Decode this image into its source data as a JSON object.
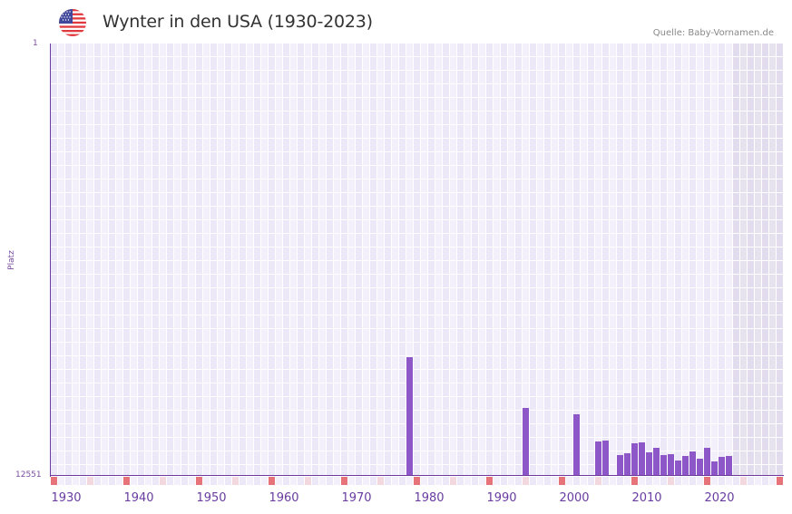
{
  "header": {
    "title": "Wynter in den USA (1930-2023)",
    "source": "Quelle: Baby-Vornamen.de",
    "flag_icon": "us-flag-icon"
  },
  "axes": {
    "y_top_label": "1",
    "y_bottom_label": "12551",
    "y_title": "Platz",
    "x_labels": [
      "1930",
      "1940",
      "1950",
      "1960",
      "1970",
      "1980",
      "1990",
      "2000",
      "2010",
      "2020"
    ]
  },
  "colors": {
    "bar": "#8e57c8",
    "axis": "#6a3ca0",
    "grid_a": "#ede8f8",
    "grid_b": "#f3f0fb",
    "shade_a": "#e2dcee",
    "shade_b": "#e6e2ee",
    "marker_strong": "#e57379",
    "marker_light": "#f4d8e0"
  },
  "chart_data": {
    "type": "bar",
    "title": "Wynter in den USA (1930-2023)",
    "xlabel": "",
    "ylabel": "Platz",
    "ylim": [
      12551,
      1
    ],
    "y_inverted": true,
    "x_range": [
      1928,
      2028
    ],
    "x_ticks": [
      1930,
      1940,
      1950,
      1960,
      1970,
      1980,
      1990,
      2000,
      2010,
      2020
    ],
    "grid": true,
    "legend": null,
    "shaded_future_region_start": 2022,
    "categories": [
      1977,
      1993,
      2000,
      2003,
      2004,
      2006,
      2007,
      2008,
      2009,
      2010,
      2011,
      2012,
      2013,
      2014,
      2015,
      2016,
      2017,
      2018,
      2019,
      2020,
      2021
    ],
    "values": [
      9104,
      10578,
      10762,
      11551,
      11525,
      11946,
      11893,
      11604,
      11578,
      11867,
      11735,
      11946,
      11920,
      12104,
      11972,
      11841,
      12051,
      11735,
      12130,
      11998,
      11972
    ]
  }
}
